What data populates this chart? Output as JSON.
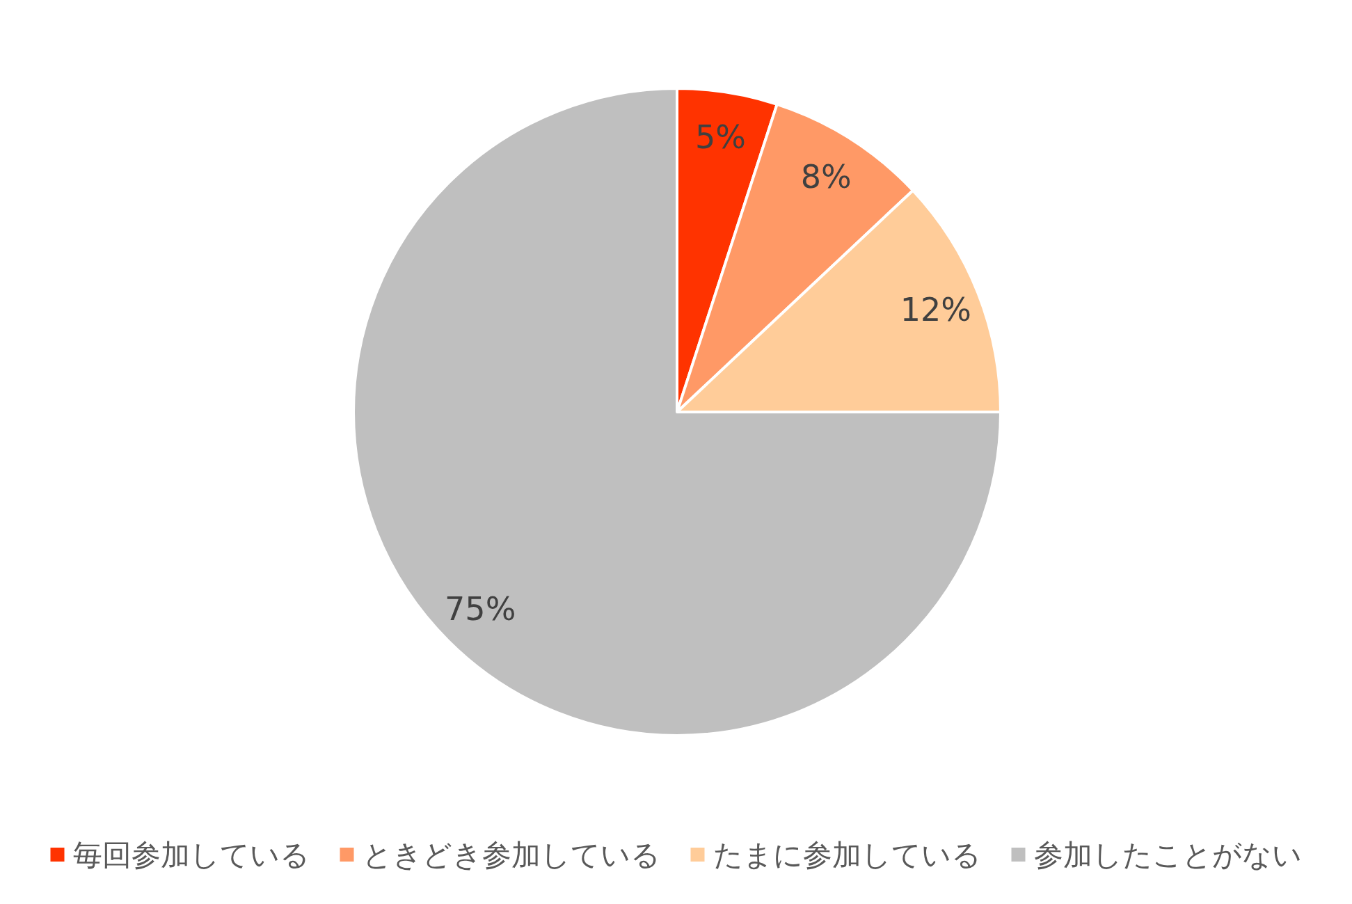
{
  "chart_data": {
    "type": "pie",
    "categories": [
      "毎回参加している",
      "ときどき参加している",
      "たまに参加している",
      "参加したことがない"
    ],
    "values": [
      5,
      8,
      12,
      75
    ],
    "colors": [
      "#ff3300",
      "#ff9966",
      "#ffcc99",
      "#bfbfbf"
    ],
    "value_labels": [
      "5%",
      "8%",
      "12%",
      "75%"
    ],
    "legend": "bottom"
  }
}
